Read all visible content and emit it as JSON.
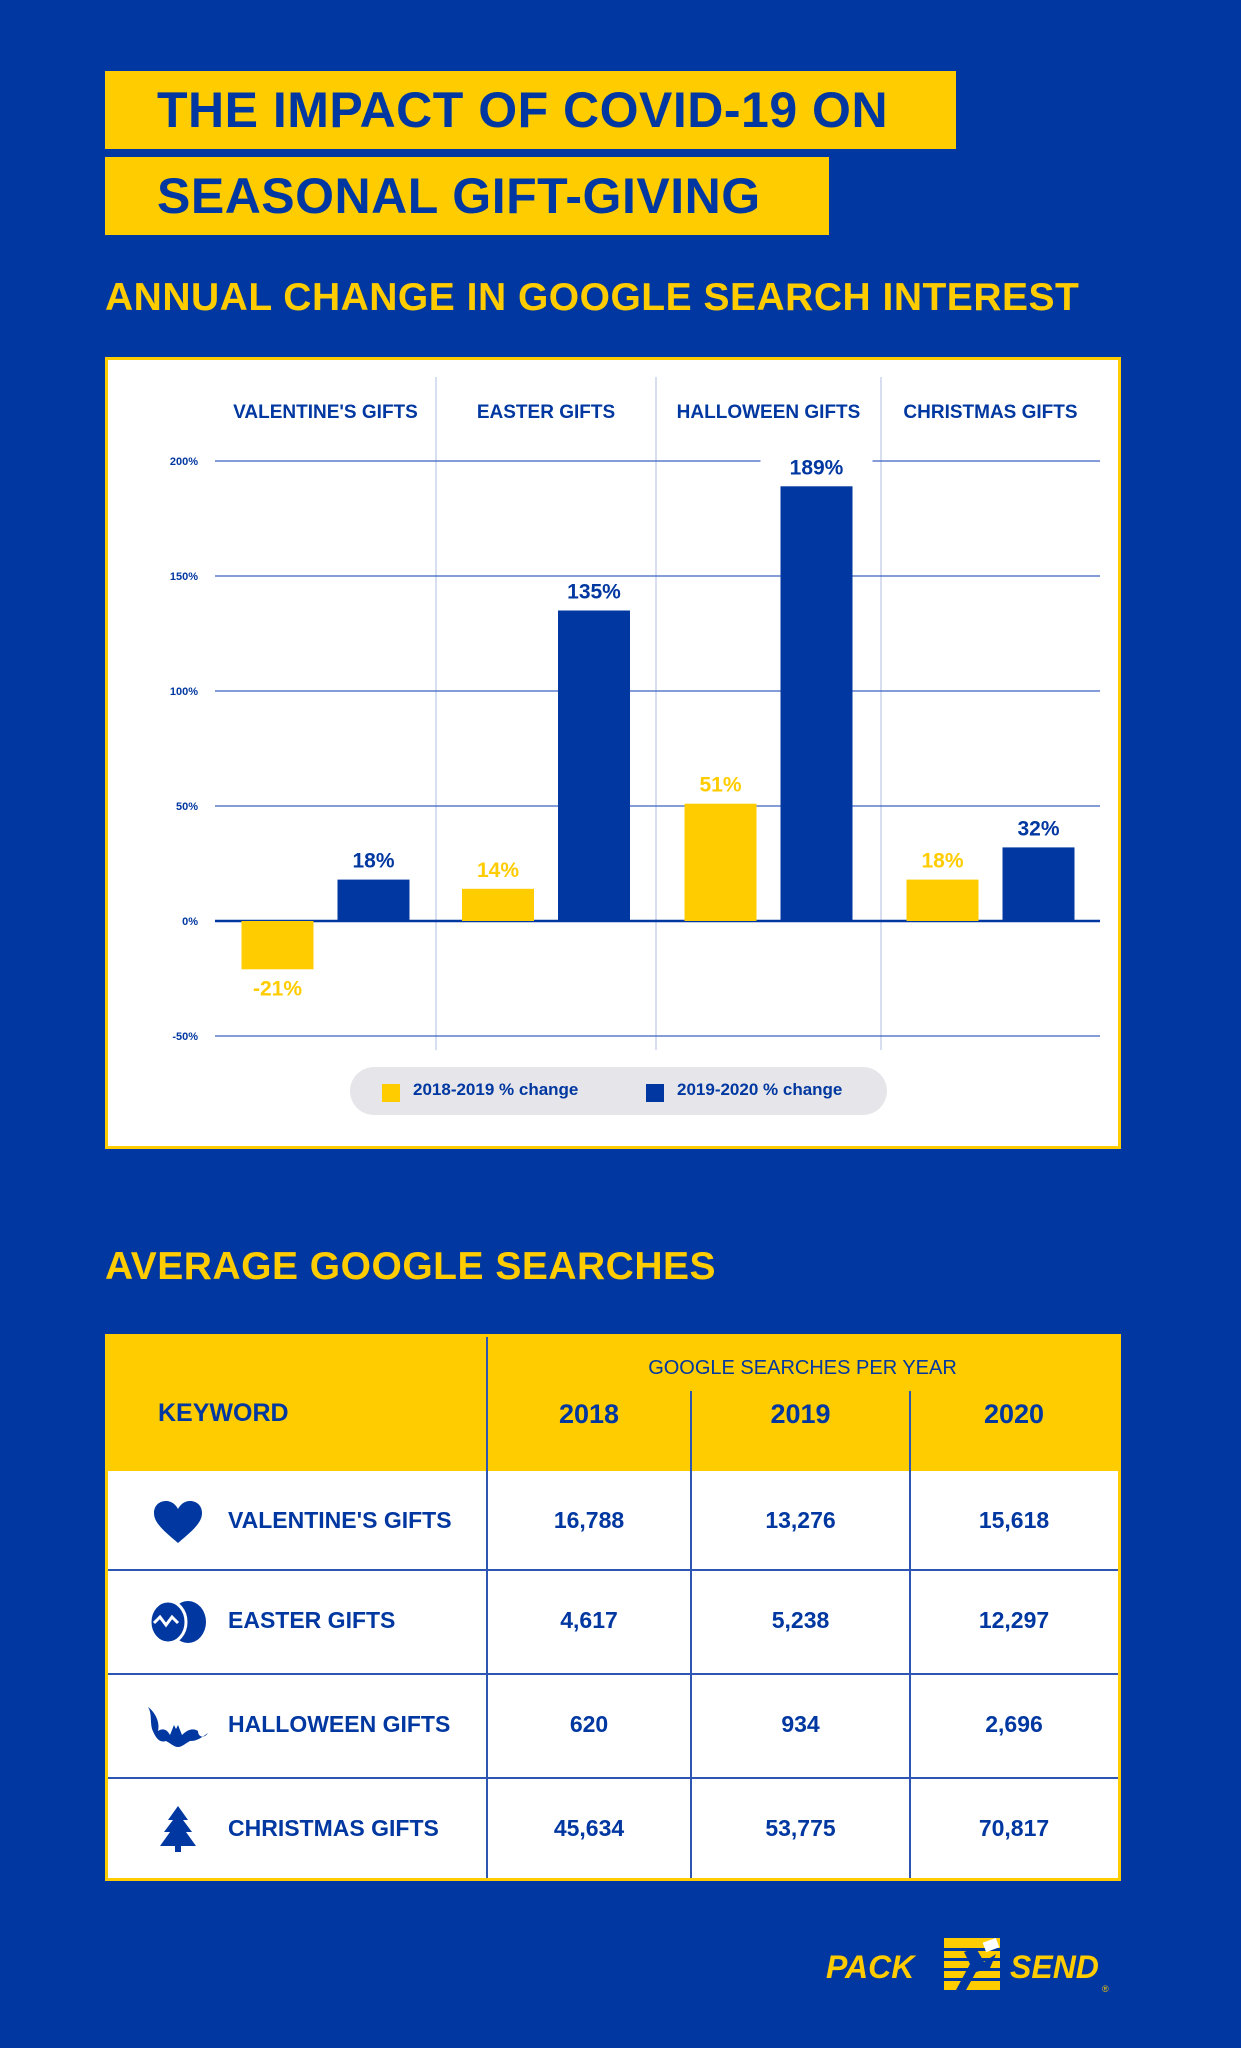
{
  "title": {
    "line1": "THE IMPACT OF COVID-19 ON",
    "line2": "SEASONAL GIFT-GIVING"
  },
  "chart_heading": "ANNUAL CHANGE IN GOOGLE SEARCH INTEREST",
  "chart_data": {
    "type": "bar",
    "title": "ANNUAL CHANGE IN GOOGLE SEARCH INTEREST",
    "categories": [
      "VALENTINE'S GIFTS",
      "EASTER GIFTS",
      "HALLOWEEN GIFTS",
      "CHRISTMAS GIFTS"
    ],
    "series": [
      {
        "name": "2018-2019 % change",
        "values": [
          -21,
          14,
          51,
          18
        ],
        "labels": [
          "-21%",
          "14%",
          "51%",
          "18%"
        ],
        "color": "#ffcc00"
      },
      {
        "name": "2019-2020 % change",
        "values": [
          18,
          135,
          189,
          32
        ],
        "labels": [
          "18%",
          "135%",
          "189%",
          "32%"
        ],
        "color": "#0037a0"
      }
    ],
    "yticks": [
      200,
      150,
      100,
      50,
      0,
      -50
    ],
    "ytick_labels": [
      "200%",
      "150%",
      "100%",
      "50%",
      "0%",
      "-50%"
    ],
    "ylim": [
      -50,
      200
    ],
    "xlabel": "",
    "ylabel": "",
    "legend": "bottom-center"
  },
  "table_heading": "AVERAGE GOOGLE SEARCHES",
  "table": {
    "keyword_header": "KEYWORD",
    "group_header": "GOOGLE SEARCHES PER YEAR",
    "years": [
      "2018",
      "2019",
      "2020"
    ],
    "rows": [
      {
        "icon": "heart-icon",
        "keyword": "VALENTINE'S GIFTS",
        "values": [
          "16,788",
          "13,276",
          "15,618"
        ]
      },
      {
        "icon": "easter-eggs-icon",
        "keyword": "EASTER GIFTS",
        "values": [
          "4,617",
          "5,238",
          "12,297"
        ]
      },
      {
        "icon": "bat-icon",
        "keyword": "HALLOWEEN GIFTS",
        "values": [
          "620",
          "934",
          "2,696"
        ]
      },
      {
        "icon": "christmas-tree-icon",
        "keyword": "CHRISTMAS GIFTS",
        "values": [
          "45,634",
          "53,775",
          "70,817"
        ]
      }
    ]
  },
  "logo": {
    "left": "PACK",
    "right": "SEND",
    "mark": "®"
  },
  "colors": {
    "background": "#0037a0",
    "accent": "#ffcc00",
    "panel": "#ffffff",
    "legend_bg": "#e6e6ea"
  }
}
